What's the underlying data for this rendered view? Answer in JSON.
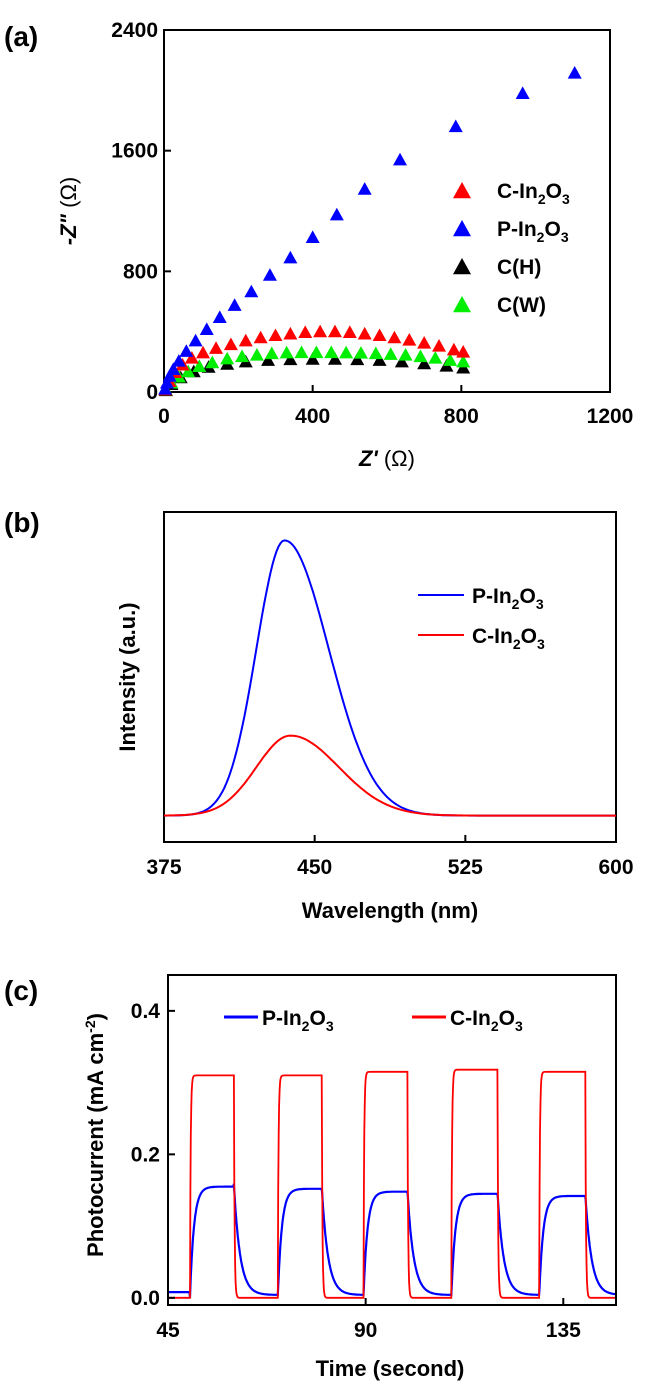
{
  "chart_data": [
    {
      "type": "scatter",
      "panel_label": "(a)",
      "xlabel_main": "Z'",
      "xlabel_unit": " (Ω)",
      "ylabel_main": "-Z\"",
      "ylabel_unit": " (Ω)",
      "xlim": [
        0,
        1200
      ],
      "ylim": [
        0,
        2400
      ],
      "xticks": [
        "0",
        "400",
        "800",
        "1200"
      ],
      "yticks": [
        "0",
        "800",
        "1600",
        "2400"
      ],
      "legend_position": "center-right",
      "series": [
        {
          "name": "C-In2O3",
          "legend": {
            "base": "C-In",
            "sub1": "2",
            "mid": "O",
            "sub2": "3"
          },
          "color": "#ff0000",
          "x": [
            4,
            15,
            30,
            50,
            75,
            105,
            140,
            180,
            220,
            260,
            300,
            340,
            380,
            420,
            460,
            500,
            540,
            580,
            620,
            660,
            700,
            740,
            780,
            805
          ],
          "y": [
            15,
            70,
            130,
            180,
            225,
            260,
            290,
            315,
            340,
            360,
            375,
            385,
            395,
            400,
            400,
            395,
            385,
            375,
            360,
            345,
            325,
            305,
            280,
            265
          ]
        },
        {
          "name": "P-In2O3",
          "legend": {
            "base": "P-In",
            "sub1": "2",
            "mid": "O",
            "sub2": "3"
          },
          "color": "#0000ff",
          "x": [
            3,
            8,
            15,
            25,
            40,
            60,
            85,
            115,
            150,
            190,
            235,
            285,
            340,
            400,
            465,
            540,
            635,
            785,
            965,
            1105
          ],
          "y": [
            20,
            60,
            105,
            150,
            205,
            270,
            340,
            415,
            495,
            575,
            665,
            775,
            890,
            1025,
            1175,
            1345,
            1540,
            1760,
            1980,
            2115
          ]
        },
        {
          "name": "C(H)",
          "legend": {
            "base": "C(H)",
            "sub1": "",
            "mid": "",
            "sub2": ""
          },
          "color": "#000000",
          "x": [
            5,
            20,
            45,
            80,
            120,
            170,
            220,
            280,
            340,
            400,
            460,
            520,
            580,
            640,
            700,
            760,
            805
          ],
          "y": [
            10,
            50,
            95,
            135,
            165,
            185,
            200,
            210,
            215,
            218,
            218,
            215,
            210,
            200,
            188,
            172,
            160
          ]
        },
        {
          "name": "C(W)",
          "legend": {
            "base": "C(W)",
            "sub1": "",
            "mid": "",
            "sub2": ""
          },
          "color": "#00ee00",
          "x": [
            5,
            20,
            40,
            65,
            95,
            130,
            170,
            210,
            250,
            290,
            330,
            370,
            410,
            450,
            490,
            530,
            570,
            610,
            650,
            690,
            730,
            770,
            805
          ],
          "y": [
            15,
            60,
            100,
            135,
            170,
            195,
            220,
            235,
            245,
            255,
            260,
            262,
            262,
            262,
            260,
            258,
            255,
            250,
            245,
            235,
            225,
            210,
            200
          ]
        }
      ]
    },
    {
      "type": "line",
      "panel_label": "(b)",
      "xlabel": "Wavelength (nm)",
      "ylabel": "Intensity (a.u.)",
      "xlim": [
        375,
        600
      ],
      "ylim": [
        0,
        1
      ],
      "xticks": [
        "375",
        "450",
        "525",
        "600"
      ],
      "legend_position": "top-right",
      "series": [
        {
          "name": "P-In2O3",
          "legend": {
            "base": "P-In",
            "sub1": "2",
            "mid": "O",
            "sub2": "3"
          },
          "color": "#0000ff",
          "peak_x": 435,
          "peak_y": 0.88,
          "baseline": 0.02,
          "sigma_left": 14,
          "sigma_right": 22
        },
        {
          "name": "C-In2O3",
          "legend": {
            "base": "C-In",
            "sub1": "2",
            "mid": "O",
            "sub2": "3"
          },
          "color": "#ff0000",
          "peak_x": 438,
          "peak_y": 0.27,
          "baseline": 0.02,
          "sigma_left": 17,
          "sigma_right": 24
        }
      ]
    },
    {
      "type": "line",
      "panel_label": "(c)",
      "xlabel": "Time (second)",
      "ylabel": "Photocurrent (mA cm",
      "ylabel_sup": "-2",
      "ylabel_end": ")",
      "xlim": [
        45,
        147
      ],
      "ylim": [
        -0.01,
        0.45
      ],
      "xticks": [
        "45",
        "90",
        "135"
      ],
      "yticks": [
        "0.0",
        "0.2",
        "0.4"
      ],
      "legend_position": "top",
      "on_intervals": [
        [
          50,
          60
        ],
        [
          70,
          80
        ],
        [
          89.5,
          99.5
        ],
        [
          109.5,
          120
        ],
        [
          129.5,
          140
        ]
      ],
      "series": [
        {
          "name": "P-In2O3",
          "legend": {
            "base": "P-In",
            "sub1": "2",
            "mid": "O",
            "sub2": "3"
          },
          "color": "#0000ff",
          "on_levels": [
            0.155,
            0.152,
            0.148,
            0.145,
            0.142
          ]
        },
        {
          "name": "C-In2O3",
          "legend": {
            "base": "C-In",
            "sub1": "2",
            "mid": "O",
            "sub2": "3"
          },
          "color": "#ff0000",
          "on_levels": [
            0.31,
            0.31,
            0.315,
            0.318,
            0.315
          ]
        }
      ]
    }
  ]
}
